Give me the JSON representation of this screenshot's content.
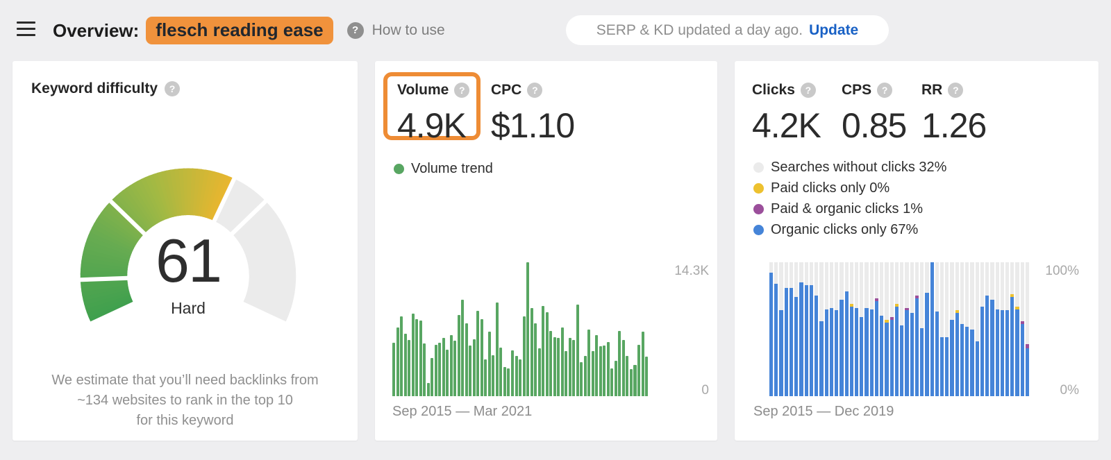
{
  "header": {
    "title_prefix": "Overview:",
    "keyword": "flesch reading ease",
    "how_to_use": "How to use",
    "update_notice": "SERP & KD updated a day ago.",
    "update_label": "Update"
  },
  "icons": {
    "help": "?"
  },
  "colors": {
    "accent_orange": "#ee8c35",
    "highlight_orange": "#f0923c",
    "link_blue": "#1961c5",
    "volume_green": "#58a662",
    "organic_blue": "#4584d8",
    "paid_yellow": "#edc12f",
    "mixed_purple": "#9b4f9b",
    "no_click_gray": "#ebebeb"
  },
  "cards": {
    "difficulty": {
      "title": "Keyword difficulty",
      "value_label": "61",
      "level": "Hard",
      "description_lines": [
        "We estimate that you’ll need backlinks from",
        "~134 websites to rank in the top 10",
        "for this keyword"
      ]
    },
    "volume": {
      "volume_label": "Volume",
      "volume_value": "4.9K",
      "cpc_label": "CPC",
      "cpc_value": "$1.10",
      "legend": "Volume trend",
      "axis_max": "14.3K",
      "axis_min": "0",
      "range": "Sep 2015 — Mar 2021"
    },
    "clicks": {
      "metrics": [
        {
          "label": "Clicks",
          "value": "4.2K"
        },
        {
          "label": "CPS",
          "value": "0.85"
        },
        {
          "label": "RR",
          "value": "1.26"
        }
      ],
      "legend": [
        {
          "label": "Searches without clicks 32%",
          "color": "#ebebeb"
        },
        {
          "label": "Paid clicks only 0%",
          "color": "#edc12f"
        },
        {
          "label": "Paid & organic clicks 1%",
          "color": "#9b4f9b"
        },
        {
          "label": "Organic clicks only 67%",
          "color": "#4584d8"
        }
      ],
      "axis_max": "100%",
      "axis_min": "0%",
      "range": "Sep 2015 — Dec 2019"
    }
  },
  "chart_data": [
    {
      "type": "gauge",
      "title": "Keyword difficulty",
      "value": 61,
      "max": 100,
      "label": "Hard",
      "segment_boundaries": [
        10,
        30,
        70
      ],
      "fill_color_stops": [
        "#40a04e",
        "#66ab51",
        "#a1b944",
        "#e9b62f"
      ],
      "empty_color": "#ebebeb",
      "sweep_deg": 230
    },
    {
      "type": "bar",
      "title": "Volume trend",
      "x_start": "Sep 2015",
      "x_end": "Mar 2021",
      "unit": "K",
      "ylim": [
        0,
        14.3
      ],
      "bar_color": "#58a662",
      "values": [
        5.7,
        7.3,
        8.5,
        6.7,
        6.0,
        8.8,
        8.2,
        8.1,
        5.6,
        1.4,
        4.1,
        5.5,
        5.7,
        6.2,
        5.0,
        6.5,
        5.9,
        8.7,
        10.3,
        7.8,
        5.4,
        6.1,
        9.1,
        8.2,
        3.9,
        6.9,
        4.4,
        10.0,
        5.2,
        3.1,
        3.0,
        4.9,
        4.3,
        3.9,
        8.5,
        14.3,
        9.4,
        7.8,
        5.1,
        9.6,
        9.0,
        7.0,
        6.3,
        6.2,
        7.3,
        4.8,
        6.2,
        6.0,
        9.8,
        3.6,
        4.3,
        7.1,
        4.8,
        6.5,
        5.3,
        5.4,
        5.8,
        3.0,
        3.8,
        7.0,
        6.0,
        4.3,
        2.9,
        3.3,
        5.5,
        6.9,
        4.2
      ]
    },
    {
      "type": "stacked-bar-percent",
      "title": "Clicks distribution",
      "x_start": "Sep 2015",
      "x_end": "Dec 2019",
      "ylim": [
        0,
        100
      ],
      "series": [
        {
          "name": "Organic clicks only",
          "color": "#4584d8",
          "values": [
            92,
            84,
            64,
            81,
            81,
            74,
            85,
            83,
            83,
            75,
            56,
            65,
            66,
            64,
            72,
            78,
            67,
            66,
            59,
            66,
            65,
            71,
            60,
            55,
            57,
            67,
            53,
            64,
            62,
            73,
            51,
            77,
            100,
            63,
            44,
            44,
            57,
            62,
            54,
            52,
            50,
            41,
            67,
            75,
            72,
            65,
            64,
            64,
            74,
            65,
            54,
            36
          ]
        },
        {
          "name": "Paid clicks only",
          "color": "#edc12f",
          "values": [
            0,
            0,
            0,
            0,
            0,
            0,
            0,
            0,
            0,
            0,
            0,
            0,
            0,
            0,
            0,
            0,
            2,
            0,
            0,
            0,
            0,
            0,
            0,
            2,
            0,
            2,
            0,
            0,
            0,
            0,
            0,
            0,
            0,
            0,
            0,
            0,
            0,
            2,
            0,
            0,
            0,
            0,
            0,
            0,
            0,
            0,
            0,
            0,
            2,
            2,
            0,
            0
          ]
        },
        {
          "name": "Paid & organic clicks",
          "color": "#9b4f9b",
          "values": [
            0,
            0,
            0,
            0,
            0,
            0,
            0,
            0,
            0,
            0,
            0,
            0,
            0,
            0,
            0,
            0,
            0,
            0,
            0,
            0,
            0,
            2,
            0,
            0,
            2,
            0,
            0,
            2,
            0,
            2,
            0,
            0,
            0,
            0,
            0,
            0,
            0,
            0,
            0,
            0,
            0,
            0,
            0,
            0,
            0,
            0,
            0,
            0,
            0,
            0,
            2,
            3
          ]
        },
        {
          "name": "Searches without clicks",
          "color": "#ebebeb",
          "background": true
        }
      ]
    }
  ]
}
